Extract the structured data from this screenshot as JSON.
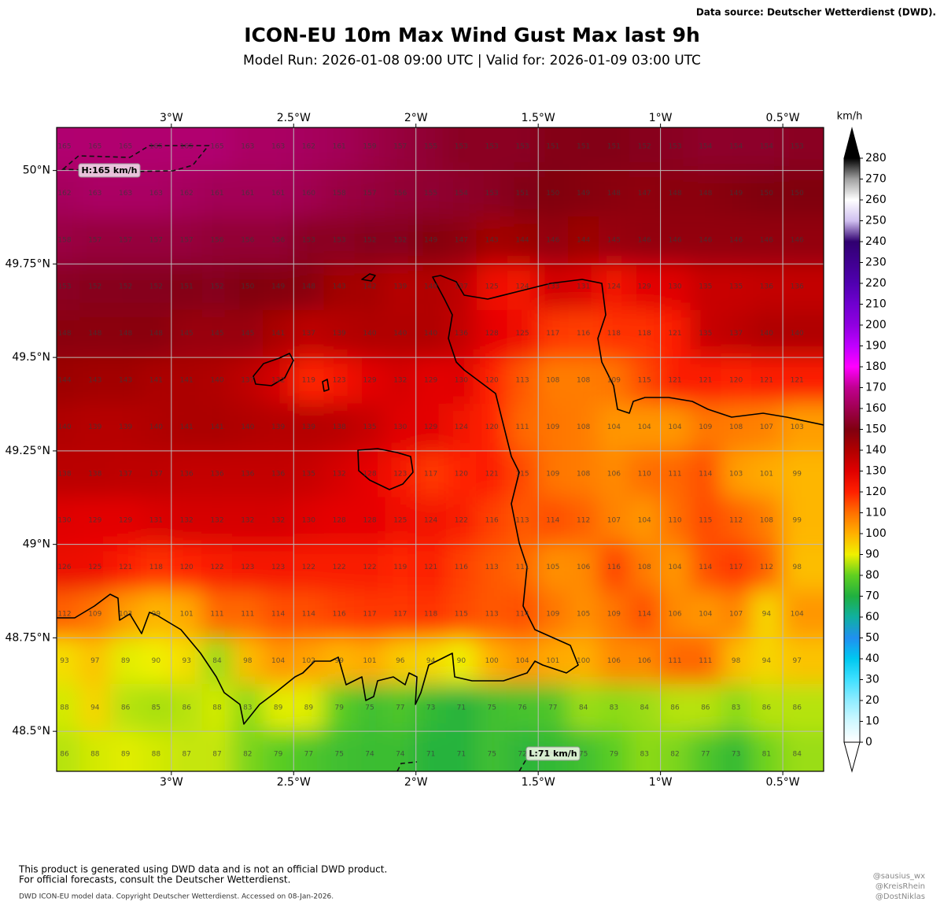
{
  "header": {
    "source": "Data source: Deutscher Wetterdienst (DWD)."
  },
  "title": "ICON-EU 10m Max Wind Gust Max last 9h",
  "subtitle": "Model Run: 2026-01-08 09:00 UTC  |  Valid for: 2026-01-09 03:00 UTC",
  "map": {
    "xlim": [
      -3.469,
      -0.333
    ],
    "ylim": [
      48.393,
      50.115
    ],
    "xticks": [
      {
        "value": -3,
        "label": "3°W"
      },
      {
        "value": -2.5,
        "label": "2.5°W"
      },
      {
        "value": -2,
        "label": "2°W"
      },
      {
        "value": -1.5,
        "label": "1.5°W"
      },
      {
        "value": -1,
        "label": "1°W"
      },
      {
        "value": -0.5,
        "label": "0.5°W"
      }
    ],
    "yticks": [
      {
        "value": 50,
        "label": "50°N"
      },
      {
        "value": 49.75,
        "label": "49.75°N"
      },
      {
        "value": 49.5,
        "label": "49.5°N"
      },
      {
        "value": 49.25,
        "label": "49.25°N"
      },
      {
        "value": 49,
        "label": "49°N"
      },
      {
        "value": 48.75,
        "label": "48.75°N"
      },
      {
        "value": 48.5,
        "label": "48.5°N"
      }
    ],
    "grid": true,
    "field": [
      [
        165,
        165,
        165,
        165,
        165,
        165,
        163,
        163,
        162,
        161,
        159,
        157,
        155,
        153,
        153,
        153,
        151,
        151,
        151,
        152,
        153,
        154,
        154,
        154,
        153
      ],
      [
        162,
        163,
        163,
        163,
        162,
        161,
        161,
        161,
        160,
        158,
        157,
        156,
        155,
        154,
        153,
        151,
        150,
        149,
        148,
        147,
        148,
        148,
        149,
        150,
        150
      ],
      [
        158,
        157,
        157,
        157,
        157,
        156,
        156,
        156,
        153,
        153,
        152,
        152,
        149,
        147,
        143,
        144,
        146,
        144,
        145,
        146,
        146,
        146,
        146,
        146,
        146
      ],
      [
        153,
        152,
        152,
        152,
        151,
        152,
        150,
        149,
        148,
        143,
        142,
        139,
        140,
        137,
        125,
        124,
        133,
        131,
        124,
        129,
        130,
        135,
        135,
        136,
        136
      ],
      [
        148,
        148,
        148,
        148,
        145,
        145,
        145,
        141,
        137,
        139,
        140,
        140,
        140,
        136,
        128,
        125,
        117,
        116,
        118,
        118,
        121,
        135,
        137,
        140,
        140
      ],
      [
        144,
        143,
        143,
        141,
        141,
        140,
        137,
        132,
        119,
        123,
        129,
        132,
        129,
        130,
        120,
        113,
        108,
        108,
        109,
        115,
        121,
        121,
        120,
        121,
        121
      ],
      [
        140,
        139,
        139,
        140,
        141,
        141,
        140,
        139,
        139,
        138,
        135,
        130,
        129,
        124,
        120,
        111,
        109,
        108,
        104,
        104,
        104,
        109,
        108,
        107,
        103
      ],
      [
        138,
        138,
        137,
        137,
        136,
        136,
        136,
        136,
        135,
        132,
        128,
        123,
        117,
        120,
        121,
        115,
        109,
        108,
        106,
        110,
        111,
        114,
        103,
        101,
        99
      ],
      [
        130,
        129,
        129,
        131,
        132,
        132,
        132,
        132,
        130,
        128,
        128,
        125,
        124,
        122,
        116,
        113,
        114,
        112,
        107,
        104,
        110,
        115,
        112,
        108,
        99
      ],
      [
        126,
        125,
        121,
        118,
        120,
        122,
        123,
        123,
        122,
        122,
        122,
        119,
        121,
        116,
        113,
        111,
        105,
        106,
        116,
        108,
        104,
        114,
        117,
        112,
        98
      ],
      [
        112,
        109,
        103,
        99,
        101,
        111,
        111,
        114,
        114,
        116,
        117,
        117,
        118,
        115,
        113,
        114,
        109,
        105,
        109,
        114,
        106,
        104,
        107,
        94,
        104
      ],
      [
        93,
        97,
        89,
        90,
        93,
        84,
        98,
        104,
        102,
        99,
        101,
        96,
        94,
        90,
        100,
        104,
        101,
        100,
        106,
        106,
        111,
        111,
        98,
        94,
        97
      ],
      [
        88,
        94,
        86,
        85,
        86,
        88,
        83,
        89,
        89,
        79,
        75,
        77,
        73,
        71,
        75,
        76,
        77,
        84,
        83,
        84,
        86,
        86,
        83,
        86,
        86
      ],
      [
        86,
        88,
        89,
        88,
        87,
        87,
        82,
        79,
        77,
        75,
        74,
        74,
        71,
        71,
        75,
        72,
        73,
        75,
        79,
        83,
        82,
        77,
        73,
        81,
        84
      ]
    ]
  },
  "annotations": [
    {
      "label": "H:165 km/h"
    },
    {
      "label": "L:71 km/h"
    }
  ],
  "colorbar": {
    "unit": "km/h",
    "lim": [
      0,
      280
    ],
    "ticks": [
      0,
      10,
      20,
      30,
      40,
      50,
      60,
      70,
      80,
      90,
      100,
      110,
      120,
      130,
      140,
      150,
      160,
      170,
      180,
      190,
      200,
      210,
      220,
      230,
      240,
      250,
      260,
      270,
      280
    ],
    "colors": [
      "#ffffff",
      "#d0f8ff",
      "#90ecff",
      "#40e0ff",
      "#00c8f0",
      "#2090f0",
      "#10b0a0",
      "#20b040",
      "#60d020",
      "#f0f000",
      "#ffb000",
      "#ff7000",
      "#ff2000",
      "#e00000",
      "#b00000",
      "#800010",
      "#a00050",
      "#c00090",
      "#ff00ff",
      "#c000ff",
      "#9000e0",
      "#7000d0",
      "#5000b0",
      "#400090",
      "#300070",
      "#d0c0f0",
      "#ffffff",
      "#a0a0a0",
      "#000000"
    ]
  },
  "footer": {
    "disclaimer": [
      "This product is generated using DWD data and is not an official DWD product.",
      "For official forecasts, consult the Deutscher Wetterdienst."
    ],
    "copyright": "DWD ICON-EU model data. Copyright Deutscher Wetterdienst. Accessed on 08-Jan-2026."
  },
  "credits": [
    "@sausius_wx",
    "@KreisRhein",
    "@DostNiklas"
  ]
}
